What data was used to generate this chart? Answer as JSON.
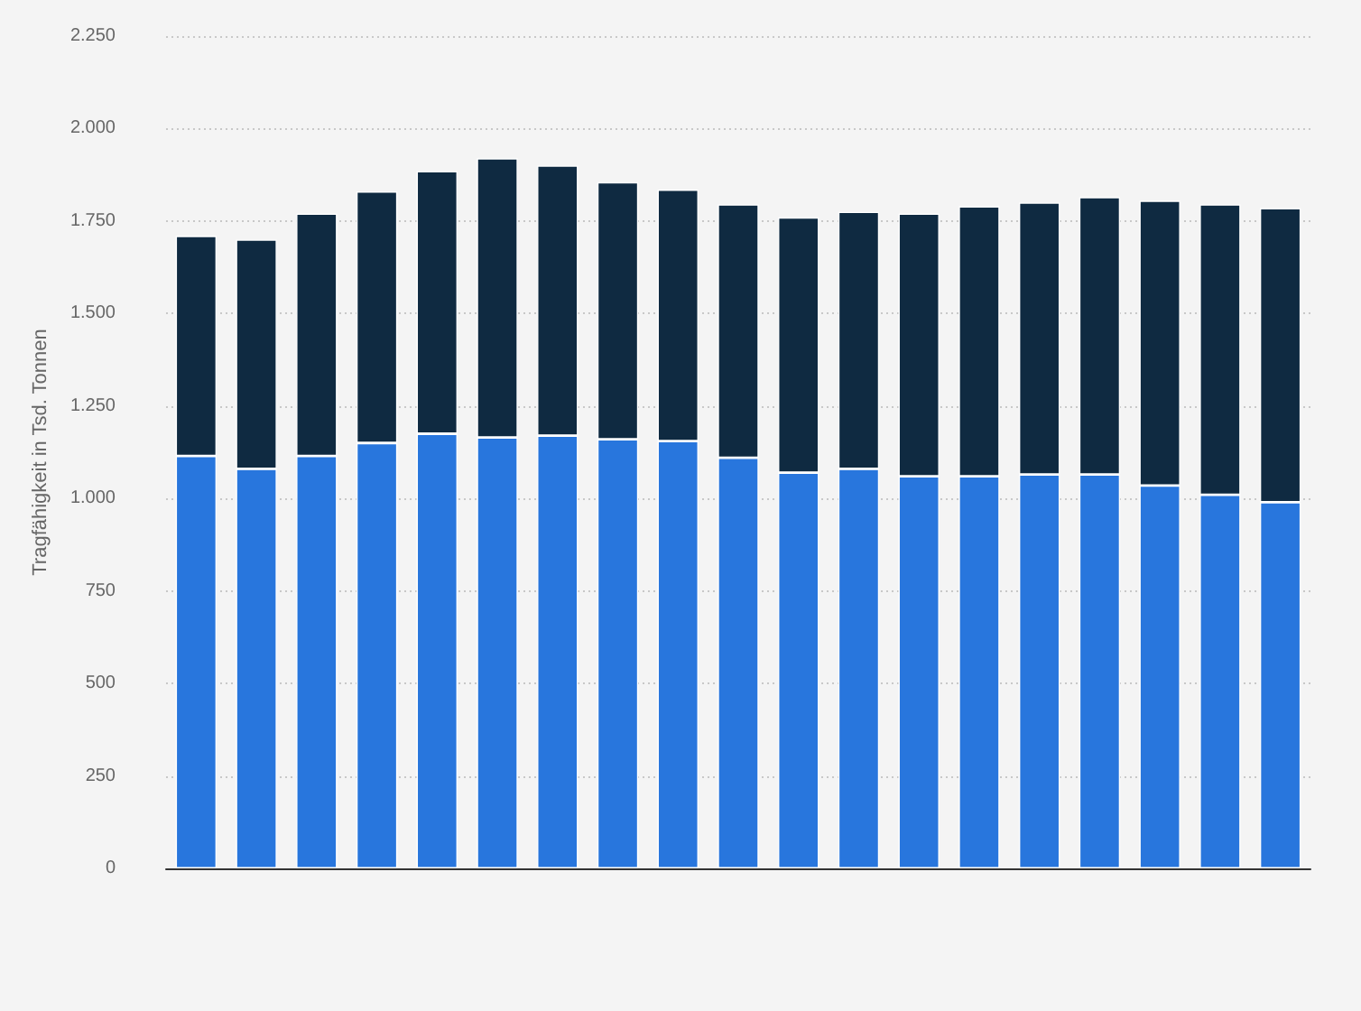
{
  "chart_data": {
    "type": "bar",
    "stacked": true,
    "ylabel": "Tragfähigkeit in Tsd. Tonnen",
    "categories": [
      null,
      null,
      null,
      null,
      null,
      null,
      null,
      null,
      null,
      null,
      null,
      null,
      null,
      null,
      null,
      null,
      null,
      null,
      null
    ],
    "series": [
      {
        "color": "#2876dd",
        "values": [
          1115,
          1080,
          1115,
          1150,
          1175,
          1165,
          1170,
          1160,
          1155,
          1110,
          1070,
          1080,
          1060,
          1060,
          1065,
          1065,
          1035,
          1010,
          990
        ]
      },
      {
        "color": "#0f2a41",
        "values": [
          595,
          620,
          655,
          680,
          710,
          755,
          730,
          695,
          680,
          685,
          690,
          695,
          710,
          730,
          735,
          750,
          770,
          785,
          795
        ]
      }
    ],
    "ylim": [
      0,
      2250
    ],
    "yticks": [
      0,
      250,
      500,
      750,
      {
        "value": 1000,
        "label": "1.000"
      },
      {
        "value": 1250,
        "label": "1.250"
      },
      {
        "value": 1500,
        "label": "1.500"
      },
      {
        "value": 1750,
        "label": "1.750"
      },
      {
        "value": 2000,
        "label": "2.000"
      },
      {
        "value": 2250,
        "label": "2.250"
      }
    ],
    "grid": "y"
  }
}
